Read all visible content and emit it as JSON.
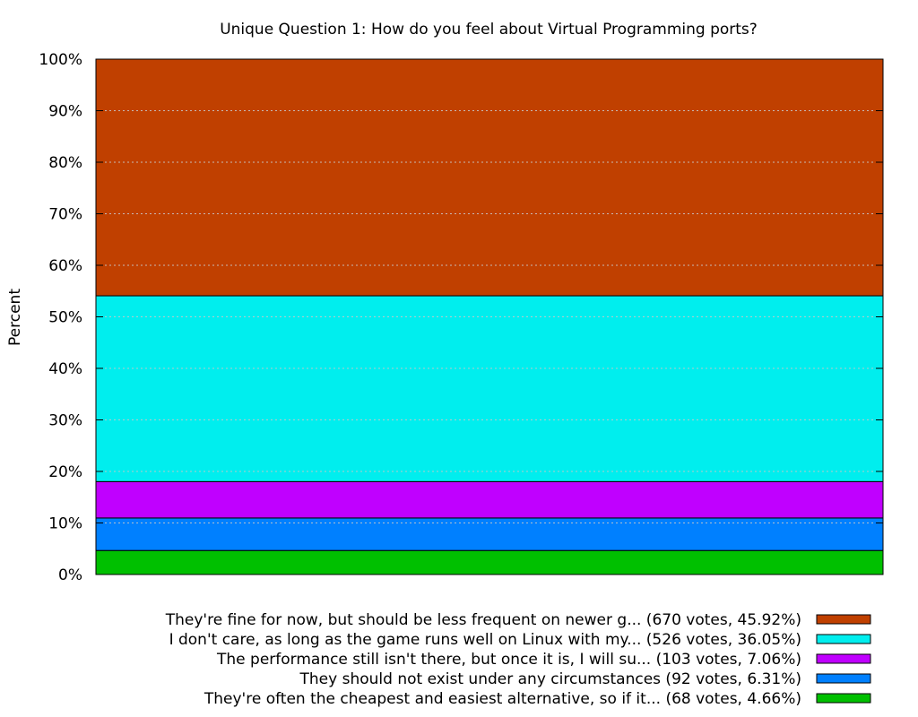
{
  "chart_data": {
    "type": "bar",
    "stacked": true,
    "title": "Unique Question 1: How do you feel about Virtual Programming ports?",
    "xlabel": "",
    "ylabel": "Percent",
    "ylim": [
      0,
      100
    ],
    "yticks": [
      "0%",
      "10%",
      "20%",
      "30%",
      "40%",
      "50%",
      "60%",
      "70%",
      "80%",
      "90%",
      "100%"
    ],
    "grid": true,
    "legend_position": "bottom-right",
    "categories": [
      ""
    ],
    "series": [
      {
        "name": "They're often the cheapest and easiest alternative, so if it... (68 votes, 4.66%)",
        "values": [
          4.66
        ],
        "color": "#00c000"
      },
      {
        "name": "They should not exist under any circumstances (92 votes, 6.31%)",
        "values": [
          6.31
        ],
        "color": "#0080ff"
      },
      {
        "name": "The performance still isn't there, but once it is, I will su... (103 votes, 7.06%)",
        "values": [
          7.06
        ],
        "color": "#c000ff"
      },
      {
        "name": "I don't care, as long as the game runs well on Linux with my... (526 votes, 36.05%)",
        "values": [
          36.05
        ],
        "color": "#00eeee"
      },
      {
        "name": "They're fine for now, but should be less frequent on newer g... (670 votes, 45.92%)",
        "values": [
          45.92
        ],
        "color": "#c04000"
      }
    ]
  }
}
